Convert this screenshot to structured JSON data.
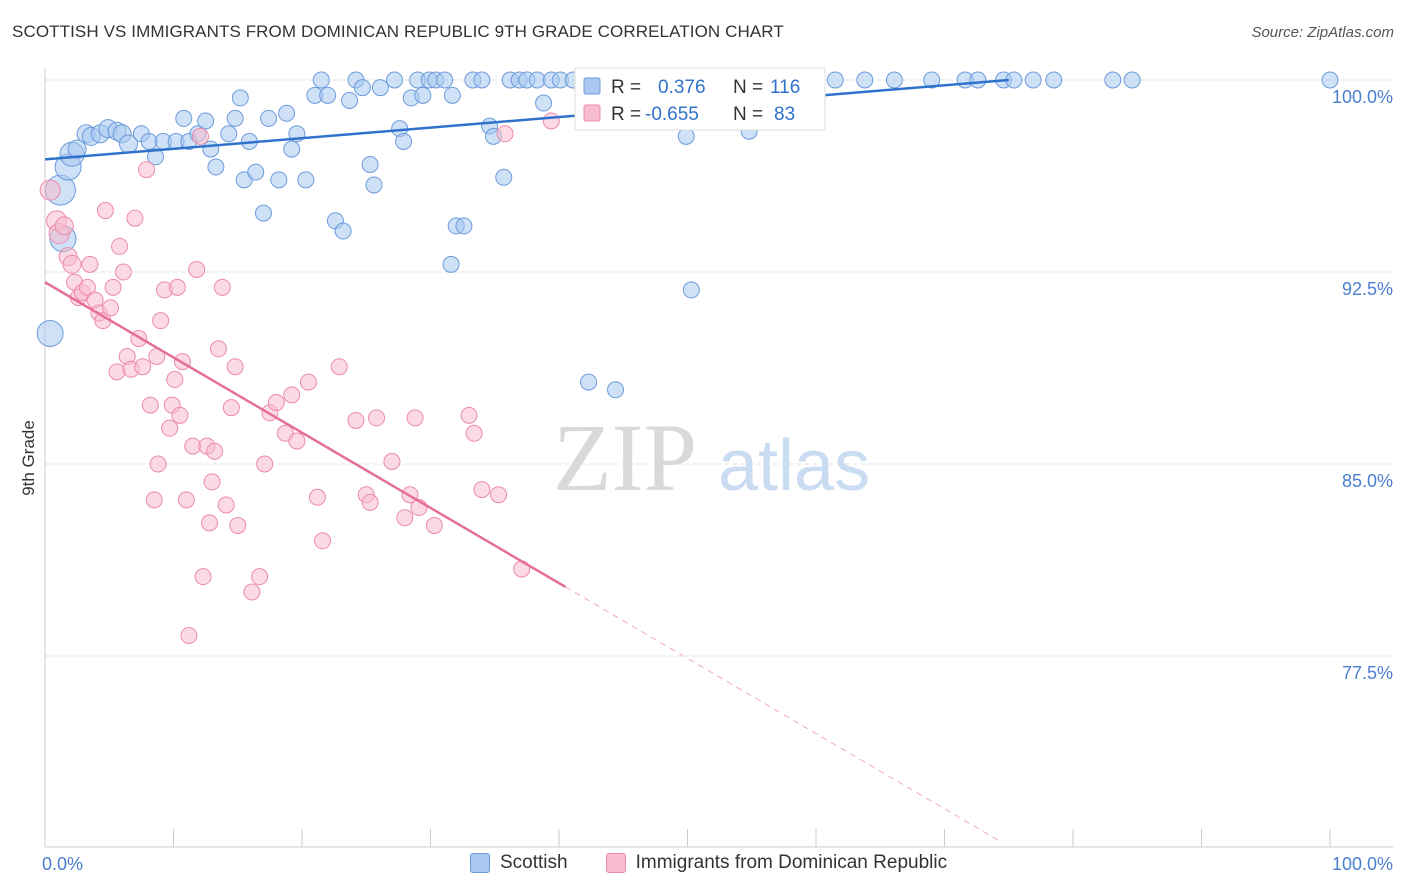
{
  "title": "SCOTTISH VS IMMIGRANTS FROM DOMINICAN REPUBLIC 9TH GRADE CORRELATION CHART",
  "source": "Source: ZipAtlas.com",
  "watermark": {
    "zip": "ZIP",
    "atlas": "atlas"
  },
  "colors": {
    "blue_fill": "#a8c8f0",
    "blue_stroke": "#6c9bdc",
    "blue_line": "#2f72cc",
    "pink_fill": "#f8bcd0",
    "pink_stroke": "#ec8aab",
    "pink_line": "#e4709a",
    "axis_text": "#4a7fcf",
    "grid": "#dddddd"
  },
  "legend": {
    "series": [
      {
        "label": "Scottish",
        "r_label": "R =",
        "r_value": "0.376",
        "n_label": "N =",
        "n_value": "116"
      },
      {
        "label": "Immigrants from Dominican Republic",
        "r_label": "R =",
        "r_value": "-0.655",
        "n_label": "N =",
        "n_value": "83"
      }
    ]
  },
  "chart_data": {
    "type": "scatter",
    "title": "SCOTTISH VS IMMIGRANTS FROM DOMINICAN REPUBLIC 9TH GRADE CORRELATION CHART",
    "xlabel": "",
    "ylabel": "9th Grade",
    "x_tick_labels": [
      "0.0%",
      "100.0%"
    ],
    "y_tick_labels": [
      "100.0%",
      "92.5%",
      "85.0%",
      "77.5%"
    ],
    "y_ticks": [
      100.0,
      92.5,
      85.0,
      77.5
    ],
    "xlim": [
      0,
      100
    ],
    "ylim": [
      70.5,
      100.7
    ],
    "legend_position": "top-center",
    "series": [
      {
        "name": "Scottish",
        "color": "blue",
        "R": 0.376,
        "N": 116,
        "trend": {
          "x": [
            0,
            75
          ],
          "y": [
            96.9,
            100.0
          ],
          "dashed_to": 75
        },
        "points": [
          [
            0.4,
            90.1,
            13
          ],
          [
            1.2,
            95.7,
            15
          ],
          [
            1.4,
            93.8,
            13
          ],
          [
            1.8,
            96.6,
            13
          ],
          [
            2.1,
            97.1,
            12
          ],
          [
            2.5,
            97.3,
            9
          ],
          [
            3.2,
            97.9,
            9
          ],
          [
            3.6,
            97.8,
            9
          ],
          [
            4.3,
            97.9,
            9
          ],
          [
            4.9,
            98.1,
            9
          ],
          [
            5.6,
            98.0,
            9
          ],
          [
            6.0,
            97.9,
            9
          ],
          [
            6.5,
            97.5,
            9
          ],
          [
            7.5,
            97.9,
            8
          ],
          [
            8.1,
            97.6,
            8
          ],
          [
            8.6,
            97.0,
            8
          ],
          [
            9.2,
            97.6,
            8
          ],
          [
            10.2,
            97.6,
            8
          ],
          [
            10.8,
            98.5,
            8
          ],
          [
            11.2,
            97.6,
            8
          ],
          [
            11.9,
            97.9,
            8
          ],
          [
            12.5,
            98.4,
            8
          ],
          [
            12.9,
            97.3,
            8
          ],
          [
            13.3,
            96.6,
            8
          ],
          [
            14.3,
            97.9,
            8
          ],
          [
            14.8,
            98.5,
            8
          ],
          [
            15.2,
            99.3,
            8
          ],
          [
            15.5,
            96.1,
            8
          ],
          [
            15.9,
            97.6,
            8
          ],
          [
            16.4,
            96.4,
            8
          ],
          [
            17.0,
            94.8,
            8
          ],
          [
            17.4,
            98.5,
            8
          ],
          [
            18.2,
            96.1,
            8
          ],
          [
            18.8,
            98.7,
            8
          ],
          [
            19.2,
            97.3,
            8
          ],
          [
            19.6,
            97.9,
            8
          ],
          [
            20.3,
            96.1,
            8
          ],
          [
            21.0,
            99.4,
            8
          ],
          [
            21.5,
            100.0,
            8
          ],
          [
            22.0,
            99.4,
            8
          ],
          [
            22.6,
            94.5,
            8
          ],
          [
            23.2,
            94.1,
            8
          ],
          [
            23.7,
            99.2,
            8
          ],
          [
            24.2,
            100.0,
            8
          ],
          [
            24.7,
            99.7,
            8
          ],
          [
            25.3,
            96.7,
            8
          ],
          [
            25.6,
            95.9,
            8
          ],
          [
            26.1,
            99.7,
            8
          ],
          [
            27.2,
            100.0,
            8
          ],
          [
            27.6,
            98.1,
            8
          ],
          [
            27.9,
            97.6,
            8
          ],
          [
            28.5,
            99.3,
            8
          ],
          [
            29.0,
            100.0,
            8
          ],
          [
            29.4,
            99.4,
            8
          ],
          [
            29.9,
            100.0,
            8
          ],
          [
            30.4,
            100.0,
            8
          ],
          [
            31.1,
            100.0,
            8
          ],
          [
            31.7,
            99.4,
            8
          ],
          [
            32.0,
            94.3,
            8
          ],
          [
            32.6,
            94.3,
            8
          ],
          [
            31.6,
            92.8,
            8
          ],
          [
            33.3,
            100.0,
            8
          ],
          [
            34.0,
            100.0,
            8
          ],
          [
            34.6,
            98.2,
            8
          ],
          [
            34.9,
            97.8,
            8
          ],
          [
            35.7,
            96.2,
            8
          ],
          [
            36.2,
            100.0,
            8
          ],
          [
            36.9,
            100.0,
            8
          ],
          [
            37.5,
            100.0,
            8
          ],
          [
            38.3,
            100.0,
            8
          ],
          [
            38.8,
            99.1,
            8
          ],
          [
            39.4,
            100.0,
            8
          ],
          [
            40.1,
            100.0,
            8
          ],
          [
            41.1,
            100.0,
            8
          ],
          [
            41.9,
            100.0,
            8
          ],
          [
            42.3,
            88.2,
            8
          ],
          [
            43.1,
            100.0,
            8
          ],
          [
            43.6,
            100.0,
            8
          ],
          [
            44.4,
            87.9,
            8
          ],
          [
            45.6,
            100.0,
            8
          ],
          [
            46.3,
            100.0,
            8
          ],
          [
            47.0,
            100.0,
            8
          ],
          [
            47.7,
            100.0,
            8
          ],
          [
            48.4,
            100.0,
            8
          ],
          [
            49.1,
            100.0,
            8
          ],
          [
            49.9,
            97.8,
            8
          ],
          [
            50.3,
            91.8,
            8
          ],
          [
            51.2,
            100.0,
            8
          ],
          [
            52.0,
            100.0,
            8
          ],
          [
            53.0,
            100.0,
            8
          ],
          [
            54.8,
            98.0,
            8
          ],
          [
            56.2,
            100.0,
            8
          ],
          [
            57.2,
            100.0,
            8
          ],
          [
            58.9,
            100.0,
            8
          ],
          [
            61.5,
            100.0,
            8
          ],
          [
            63.8,
            100.0,
            8
          ],
          [
            66.1,
            100.0,
            8
          ],
          [
            69.0,
            100.0,
            8
          ],
          [
            71.6,
            100.0,
            8
          ],
          [
            72.6,
            100.0,
            8
          ],
          [
            74.6,
            100.0,
            8
          ],
          [
            75.4,
            100.0,
            8
          ],
          [
            76.9,
            100.0,
            8
          ],
          [
            78.5,
            100.0,
            8
          ],
          [
            83.1,
            100.0,
            8
          ],
          [
            84.6,
            100.0,
            8
          ],
          [
            100.0,
            100.0,
            8
          ]
        ]
      },
      {
        "name": "Immigrants from Dominican Republic",
        "color": "pink",
        "R": -0.655,
        "N": 83,
        "trend": {
          "x": [
            0,
            40.5
          ],
          "y": [
            92.1,
            80.2
          ],
          "dashed_to": 74.5
        },
        "points": [
          [
            0.4,
            95.7,
            10
          ],
          [
            0.9,
            94.5,
            10
          ],
          [
            1.1,
            94.0,
            10
          ],
          [
            1.5,
            94.3,
            9
          ],
          [
            1.8,
            93.1,
            9
          ],
          [
            2.1,
            92.8,
            9
          ],
          [
            2.3,
            92.1,
            8
          ],
          [
            2.6,
            91.5,
            8
          ],
          [
            2.9,
            91.7,
            8
          ],
          [
            3.3,
            91.9,
            8
          ],
          [
            3.5,
            92.8,
            8
          ],
          [
            3.9,
            91.4,
            8
          ],
          [
            4.2,
            90.9,
            8
          ],
          [
            4.5,
            90.6,
            8
          ],
          [
            4.7,
            94.9,
            8
          ],
          [
            5.1,
            91.1,
            8
          ],
          [
            5.3,
            91.9,
            8
          ],
          [
            5.6,
            88.6,
            8
          ],
          [
            5.8,
            93.5,
            8
          ],
          [
            6.1,
            92.5,
            8
          ],
          [
            6.4,
            89.2,
            8
          ],
          [
            6.7,
            88.7,
            8
          ],
          [
            7.0,
            94.6,
            8
          ],
          [
            7.3,
            89.9,
            8
          ],
          [
            7.6,
            88.8,
            8
          ],
          [
            7.9,
            96.5,
            8
          ],
          [
            8.2,
            87.3,
            8
          ],
          [
            8.5,
            83.6,
            8
          ],
          [
            8.8,
            85.0,
            8
          ],
          [
            8.7,
            89.2,
            8
          ],
          [
            9.0,
            90.6,
            8
          ],
          [
            9.3,
            91.8,
            8
          ],
          [
            9.7,
            86.4,
            8
          ],
          [
            9.9,
            87.3,
            8
          ],
          [
            10.1,
            88.3,
            8
          ],
          [
            10.3,
            91.9,
            8
          ],
          [
            10.5,
            86.9,
            8
          ],
          [
            10.7,
            89.0,
            8
          ],
          [
            11.0,
            83.6,
            8
          ],
          [
            11.2,
            78.3,
            8
          ],
          [
            11.5,
            85.7,
            8
          ],
          [
            11.8,
            92.6,
            8
          ],
          [
            12.1,
            97.8,
            8
          ],
          [
            12.3,
            80.6,
            8
          ],
          [
            12.6,
            85.7,
            8
          ],
          [
            12.8,
            82.7,
            8
          ],
          [
            13.0,
            84.3,
            8
          ],
          [
            13.2,
            85.5,
            8
          ],
          [
            13.5,
            89.5,
            8
          ],
          [
            13.8,
            91.9,
            8
          ],
          [
            14.1,
            83.4,
            8
          ],
          [
            14.5,
            87.2,
            8
          ],
          [
            14.8,
            88.8,
            8
          ],
          [
            15.0,
            82.6,
            8
          ],
          [
            16.1,
            80.0,
            8
          ],
          [
            16.7,
            80.6,
            8
          ],
          [
            17.1,
            85.0,
            8
          ],
          [
            17.5,
            87.0,
            8
          ],
          [
            18.0,
            87.4,
            8
          ],
          [
            18.7,
            86.2,
            8
          ],
          [
            19.2,
            87.7,
            8
          ],
          [
            19.6,
            85.9,
            8
          ],
          [
            20.5,
            88.2,
            8
          ],
          [
            21.2,
            83.7,
            8
          ],
          [
            21.6,
            82.0,
            8
          ],
          [
            22.9,
            88.8,
            8
          ],
          [
            24.2,
            86.7,
            8
          ],
          [
            25.0,
            83.8,
            8
          ],
          [
            25.3,
            83.5,
            8
          ],
          [
            25.8,
            86.8,
            8
          ],
          [
            27.0,
            85.1,
            8
          ],
          [
            28.0,
            82.9,
            8
          ],
          [
            28.4,
            83.8,
            8
          ],
          [
            28.8,
            86.8,
            8
          ],
          [
            29.1,
            83.3,
            8
          ],
          [
            30.3,
            82.6,
            8
          ],
          [
            33.0,
            86.9,
            8
          ],
          [
            33.4,
            86.2,
            8
          ],
          [
            34.0,
            84.0,
            8
          ],
          [
            35.3,
            83.8,
            8
          ],
          [
            37.1,
            80.9,
            8
          ],
          [
            35.8,
            97.9,
            8
          ],
          [
            39.4,
            98.4,
            8
          ]
        ]
      }
    ]
  }
}
